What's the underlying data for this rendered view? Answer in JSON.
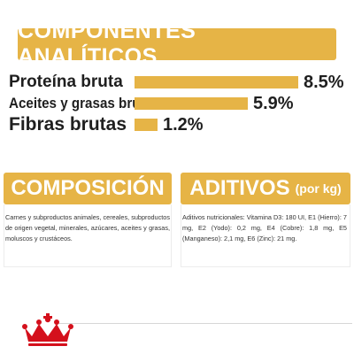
{
  "header": {
    "title": "COMPONENTES ANALÍTICOS"
  },
  "analysis": [
    {
      "label": "Proteína bruta",
      "value": "8.5%",
      "percent": 8.5
    },
    {
      "label": "Aceites y grasas brutos",
      "value": "5.9%",
      "percent": 5.9
    },
    {
      "label": "Fibras brutas",
      "value": "1.2%",
      "percent": 1.2
    }
  ],
  "composition": {
    "title": "COMPOSICIÓN",
    "text": "Carnes y subproductos animales, cereales, subproductos de origen vegetal, minerales, azúcares, aceites y grasas, moluscos y crustáceos."
  },
  "additives": {
    "title": "ADITIVOS",
    "subtitle": "(por kg)",
    "text": "Aditivos nutricionales: Vitamina D3: 180 UI, E1 (Hierro): 7 mg, E2 (Yodo): 0,2 mg, E4 (Cobre): 1,8 mg, E5 (Manganeso): 2,1 mg, E6 (Zinc): 21 mg."
  },
  "colors": {
    "accent": "#e6b446",
    "logo_red": "#d4101c"
  },
  "logo": {
    "icon": "crown-icon"
  }
}
